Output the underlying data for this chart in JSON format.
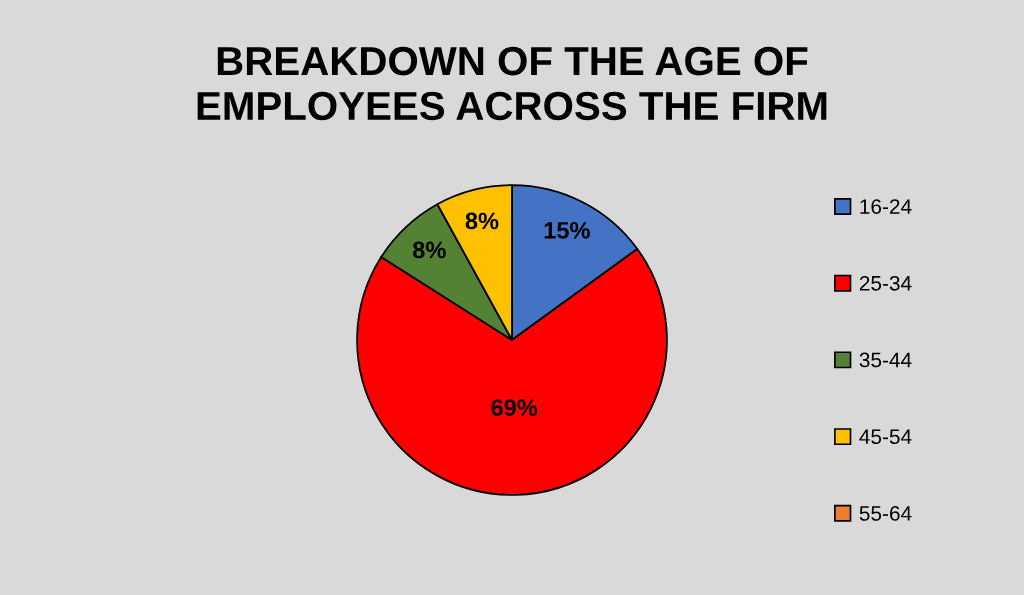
{
  "chart_data": {
    "type": "pie",
    "title": "BREAKDOWN OF THE AGE OF\nEMPLOYEES ACROSS THE FIRM",
    "categories": [
      "16-24",
      "25-34",
      "35-44",
      "45-54",
      "55-64"
    ],
    "values": [
      15,
      69,
      8,
      8,
      0
    ],
    "colors": [
      "#4472c4",
      "#ff0000",
      "#548235",
      "#ffc000",
      "#ed7d31"
    ],
    "value_labels": [
      "15%",
      "69%",
      "8%",
      "8%",
      null
    ],
    "legend": "right"
  }
}
